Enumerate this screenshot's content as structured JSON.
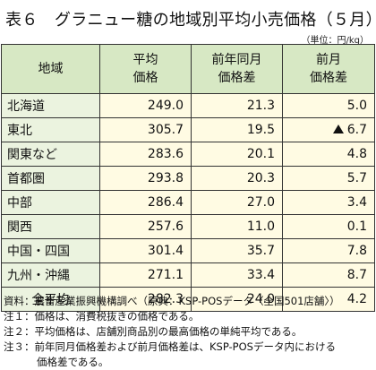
{
  "title": "表６　グラニュー糖の地域別平均小売価格（５月）",
  "unit": "（単位：円/kg）",
  "headers": {
    "region": "地域",
    "avg_line1": "平均",
    "avg_line2": "価格",
    "yoy_line1": "前年同月",
    "yoy_line2": "価格差",
    "mom_line1": "前月",
    "mom_line2": "価格差"
  },
  "rows": [
    {
      "region": "北海道",
      "avg": "249.0",
      "yoy": "21.3",
      "mom": "5.0",
      "mom_neg": false
    },
    {
      "region": "東北",
      "avg": "305.7",
      "yoy": "19.5",
      "mom": "6.7",
      "mom_neg": true
    },
    {
      "region": "関東など",
      "avg": "283.6",
      "yoy": "20.1",
      "mom": "4.8",
      "mom_neg": false
    },
    {
      "region": "首都圏",
      "avg": "293.8",
      "yoy": "20.3",
      "mom": "5.7",
      "mom_neg": false
    },
    {
      "region": "中部",
      "avg": "286.4",
      "yoy": "27.0",
      "mom": "3.4",
      "mom_neg": false
    },
    {
      "region": "関西",
      "avg": "257.6",
      "yoy": "11.0",
      "mom": "0.1",
      "mom_neg": false
    },
    {
      "region": "中国・四国",
      "avg": "301.4",
      "yoy": "35.7",
      "mom": "7.8",
      "mom_neg": false
    },
    {
      "region": "九州・沖縄",
      "avg": "271.1",
      "yoy": "33.4",
      "mom": "8.7",
      "mom_neg": false
    },
    {
      "region": "全平均",
      "avg": "282.3",
      "yoy": "24.0",
      "mom": "4.2",
      "mom_neg": false
    }
  ],
  "notes": {
    "source": "資料：農畜産業振興機構調べ（原典：KSP-POSデータ〈全国501店舗〉）",
    "note1": "注１：価格は、消費税抜きの価格である。",
    "note2": "注２：平均価格は、店舗別商品別の最高価格の単純平均である。",
    "note3_line1": "注３：前年同月価格差および前月価格差は、KSP-POSデータ内における",
    "note3_line2": "価格差である。"
  }
}
